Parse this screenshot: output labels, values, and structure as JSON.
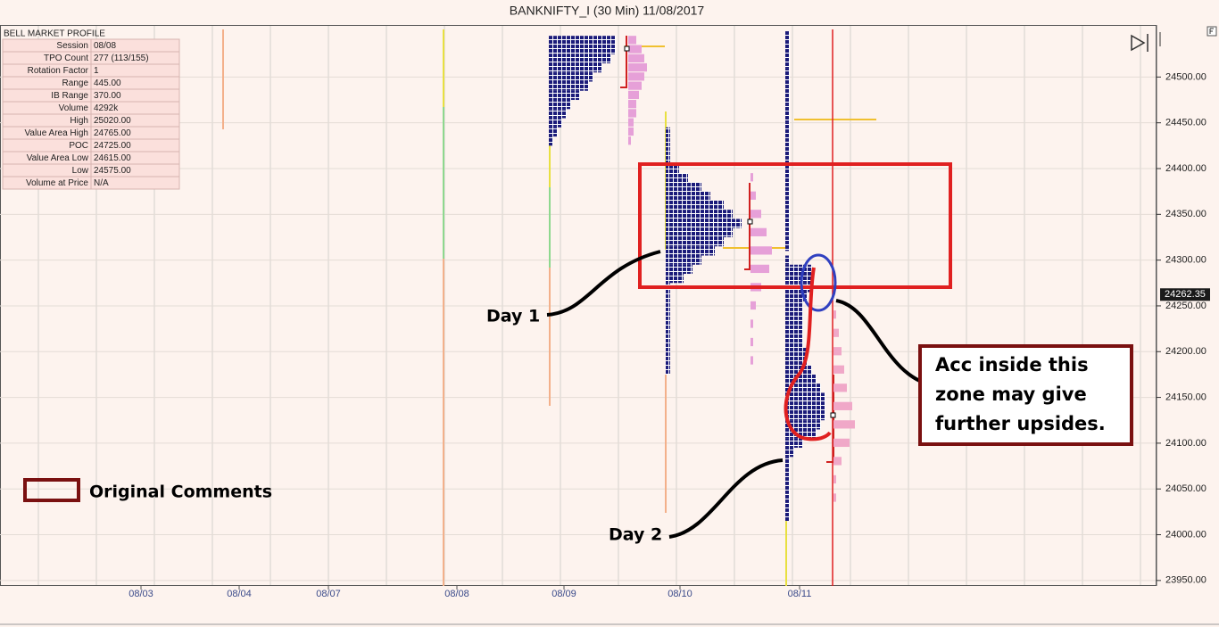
{
  "chart_data": {
    "type": "market-profile",
    "title": "BANKNIFTY_I (30 Min)  11/08/2017",
    "panel": {
      "title": "BELL MARKET PROFILE",
      "rows": [
        [
          "Session",
          "08/08"
        ],
        [
          "TPO Count",
          "277 (113/155)"
        ],
        [
          "Rotation Factor",
          "1"
        ],
        [
          "Range",
          "445.00"
        ],
        [
          "IB Range",
          "370.00"
        ],
        [
          "Volume",
          "4292k"
        ],
        [
          "High",
          "25020.00"
        ],
        [
          "Value Area High",
          "24765.00"
        ],
        [
          "POC",
          "24725.00"
        ],
        [
          "Value Area Low",
          "24615.00"
        ],
        [
          "Low",
          "24575.00"
        ],
        [
          "Volume at Price",
          "N/A"
        ]
      ]
    },
    "categories": [
      "08/03",
      "08/04",
      "08/07",
      "08/08",
      "08/09",
      "08/10",
      "08/11"
    ],
    "ylim": [
      23944,
      24552
    ],
    "yticks": [
      {
        "value": 24500,
        "label": "24500.00"
      },
      {
        "value": 24450,
        "label": "24450.00"
      },
      {
        "value": 24400,
        "label": "24400.00"
      },
      {
        "value": 24350,
        "label": "24350.00"
      },
      {
        "value": 24300,
        "label": "24300.00"
      },
      {
        "value": 24250,
        "label": "24250.00"
      },
      {
        "value": 24200,
        "label": "24200.00"
      },
      {
        "value": 24150,
        "label": "24150.00"
      },
      {
        "value": 24100,
        "label": "24100.00"
      },
      {
        "value": 24050,
        "label": "24050.00"
      },
      {
        "value": 24000,
        "label": "24000.00"
      },
      {
        "value": 23950,
        "label": "23950.00"
      }
    ],
    "grid": true,
    "last_price": 24262.35,
    "profiles": [
      {
        "session": "08/09",
        "color": "#1b1b7a",
        "prices": [
          24540,
          24530,
          24520,
          24510,
          24500,
          24490,
          24480,
          24470,
          24460,
          24450,
          24440,
          24430
        ],
        "values": [
          15,
          15,
          14,
          12,
          10,
          9,
          7,
          5,
          4,
          3,
          2,
          1
        ]
      },
      {
        "session": "08/10",
        "color": "#1b1b7a",
        "prices": [
          24440,
          24430,
          24420,
          24410,
          24400,
          24390,
          24380,
          24370,
          24360,
          24350,
          24340,
          24330,
          24320,
          24310,
          24300,
          24290,
          24280,
          24270,
          24260,
          24250,
          24240,
          24230,
          24220,
          24210,
          24200,
          24190,
          24180
        ],
        "values": [
          1,
          1,
          1,
          1,
          3,
          5,
          8,
          10,
          13,
          15,
          17,
          15,
          13,
          11,
          8,
          6,
          4,
          1,
          1,
          1,
          1,
          1,
          1,
          1,
          1,
          1,
          1
        ]
      },
      {
        "session": "08/11",
        "color": "#1b1b7a",
        "prices": [
          24540,
          24520,
          24500,
          24480,
          24460,
          24440,
          24420,
          24400,
          24380,
          24360,
          24340,
          24320,
          24300,
          24290,
          24280,
          24270,
          24260,
          24250,
          24240,
          24230,
          24220,
          24210,
          24200,
          24190,
          24180,
          24170,
          24160,
          24150,
          24140,
          24130,
          24120,
          24110,
          24100,
          24090,
          24080,
          24070,
          24060,
          24050,
          24040,
          24030,
          24020
        ],
        "values": [
          1,
          1,
          1,
          1,
          1,
          1,
          1,
          1,
          1,
          1,
          1,
          1,
          1,
          6,
          6,
          6,
          5,
          4,
          4,
          4,
          4,
          4,
          5,
          5,
          6,
          7,
          8,
          9,
          9,
          9,
          8,
          7,
          4,
          2,
          1,
          1,
          1,
          1,
          1,
          1,
          1
        ]
      }
    ],
    "volume_profiles": [
      {
        "session": "08/09",
        "color": "#e6a0d8",
        "prices": [
          24540,
          24530,
          24520,
          24510,
          24500,
          24490,
          24480,
          24470,
          24460,
          24450,
          24440,
          24430
        ],
        "values": [
          3,
          5,
          6,
          7,
          6,
          5,
          4,
          3,
          3,
          2,
          2,
          1
        ]
      },
      {
        "session": "08/10",
        "color": "#e6a0d8",
        "prices": [
          24390,
          24370,
          24350,
          24330,
          24310,
          24290,
          24270,
          24250,
          24230,
          24210,
          24190
        ],
        "values": [
          1,
          2,
          4,
          6,
          8,
          7,
          4,
          2,
          1,
          1,
          1
        ]
      },
      {
        "session": "08/11",
        "color": "#f0a8c8",
        "prices": [
          24240,
          24220,
          24200,
          24180,
          24160,
          24140,
          24120,
          24100,
          24080,
          24060,
          24040
        ],
        "values": [
          1,
          2,
          3,
          4,
          5,
          7,
          8,
          6,
          3,
          1,
          1
        ]
      }
    ],
    "annotations": {
      "day1": "Day 1",
      "day2": "Day 2",
      "comment": [
        "Acc inside this",
        "zone may give",
        "further upsides."
      ],
      "legend": "Original Comments"
    }
  }
}
